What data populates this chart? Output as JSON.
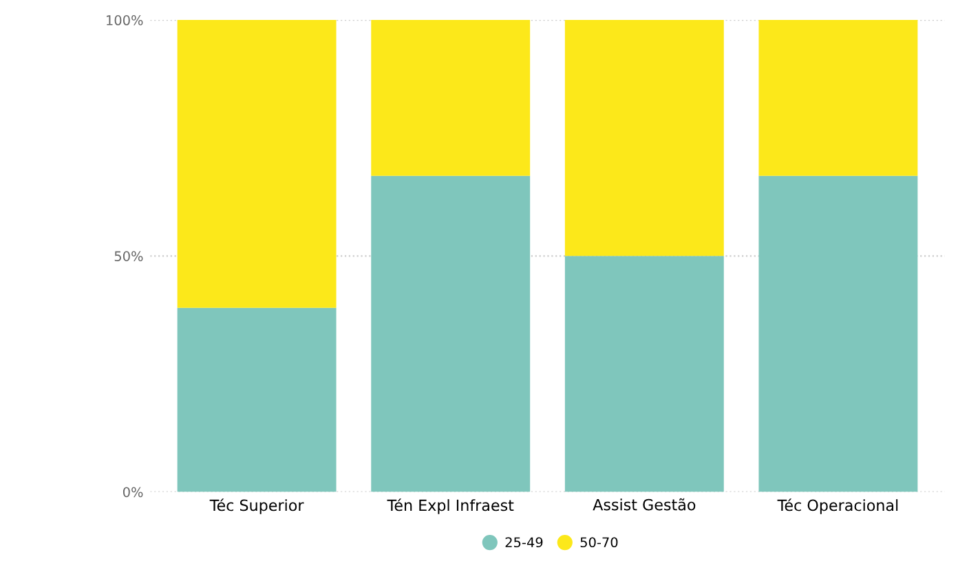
{
  "chart_data": {
    "type": "bar",
    "stacked": true,
    "categories": [
      "Téc Superior",
      "Tén Expl Infraest",
      "Assist Gestão",
      "Téc Operacional"
    ],
    "series": [
      {
        "name": "25-49",
        "color": "#7fc6bc",
        "values": [
          39,
          67,
          50,
          67
        ]
      },
      {
        "name": "50-70",
        "color": "#fce81a",
        "values": [
          61,
          33,
          50,
          33
        ]
      }
    ],
    "ylim": [
      0,
      100
    ],
    "yticks": [
      {
        "value": 0,
        "label": "0%"
      },
      {
        "value": 50,
        "label": "50%"
      },
      {
        "value": 100,
        "label": "100%"
      }
    ],
    "grid": "y",
    "legend": "bottom"
  }
}
